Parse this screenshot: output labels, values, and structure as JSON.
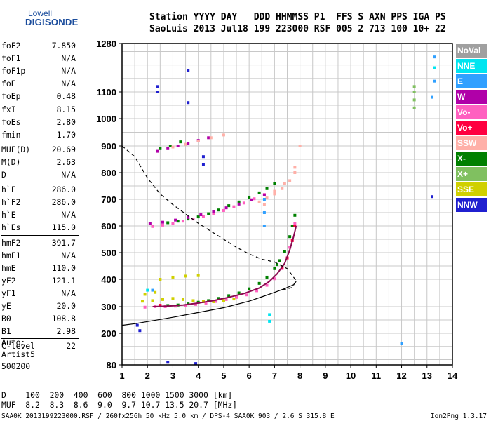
{
  "logo": {
    "line1": "Lowell",
    "line2": "DIGISONDE"
  },
  "header": {
    "line1": "Station YYYY DAY   DDD HHMMSS P1  FFS S AXN PPS IGA PS",
    "line2": "SaoLuis 2013 Jul18 199 223000 RSF 005 2 713 100 10+ 22"
  },
  "params": [
    {
      "name": "foF2",
      "value": "7.850"
    },
    {
      "name": "foF1",
      "value": "N/A"
    },
    {
      "name": "foF1p",
      "value": "N/A"
    },
    {
      "name": "foE",
      "value": "N/A"
    },
    {
      "name": "foEp",
      "value": "0.48"
    },
    {
      "name": "fxI",
      "value": "8.15"
    },
    {
      "name": "foEs",
      "value": "2.80"
    },
    {
      "name": "fmin",
      "value": "1.70"
    },
    {
      "name": "MUF(D)",
      "value": "20.69"
    },
    {
      "name": "M(D)",
      "value": "2.63"
    },
    {
      "name": "D",
      "value": "N/A"
    },
    {
      "name": "h`F",
      "value": "286.0"
    },
    {
      "name": "h`F2",
      "value": "286.0"
    },
    {
      "name": "h`E",
      "value": "N/A"
    },
    {
      "name": "h`Es",
      "value": "115.0"
    },
    {
      "name": "hmF2",
      "value": "391.7"
    },
    {
      "name": "hmF1",
      "value": "N/A"
    },
    {
      "name": "hmE",
      "value": "110.0"
    },
    {
      "name": "yF2",
      "value": "121.1"
    },
    {
      "name": "yF1",
      "value": "N/A"
    },
    {
      "name": "yE",
      "value": "20.0"
    },
    {
      "name": "B0",
      "value": "108.8"
    },
    {
      "name": "B1",
      "value": "2.98"
    },
    {
      "name": "C-level",
      "value": "22"
    }
  ],
  "auto": {
    "line1": "Auto:",
    "line2": "Artist5",
    "line3": "500200"
  },
  "bottom": {
    "line1": "D    100  200  400  600  800 1000 1500 3000 [km]",
    "line2": "MUF  8.2  8.3  8.6  9.0  9.7 10.7 13.5 20.7 [MHz]"
  },
  "footer": {
    "left": "SAA0K_2013199223000.RSF / 260fx256h 50 kHz 5.0 km / DPS-4 SAA0K 903 / 2.6 S 315.8 E",
    "right": "Ion2Png 1.3.17"
  },
  "legend": [
    {
      "label": "NoVal",
      "bg": "#a0a0a0",
      "fg": "#ffffff"
    },
    {
      "label": "NNE",
      "bg": "#00e5f0",
      "fg": "#ffffff"
    },
    {
      "label": "E",
      "bg": "#30a0ff",
      "fg": "#ffffff"
    },
    {
      "label": "W",
      "bg": "#b000a8",
      "fg": "#ffffff"
    },
    {
      "label": "Vo-",
      "bg": "#ff60c0",
      "fg": "#ffffff"
    },
    {
      "label": "Vo+",
      "bg": "#ff0040",
      "fg": "#ffffff"
    },
    {
      "label": "SSW",
      "bg": "#ffb0a8",
      "fg": "#ffffff"
    },
    {
      "label": "X-",
      "bg": "#008000",
      "fg": "#ffffff"
    },
    {
      "label": "X+",
      "bg": "#80c060",
      "fg": "#ffffff"
    },
    {
      "label": "SSE",
      "bg": "#d0d000",
      "fg": "#ffffff"
    },
    {
      "label": "NNW",
      "bg": "#2020d0",
      "fg": "#ffffff"
    }
  ],
  "chart_data": {
    "type": "scatter",
    "title": "",
    "xlabel": "",
    "ylabel": "",
    "xlim": [
      1,
      14
    ],
    "ylim": [
      80,
      1280
    ],
    "x_ticks": [
      1,
      2,
      3,
      4,
      5,
      6,
      7,
      8,
      9,
      10,
      11,
      12,
      13,
      14
    ],
    "y_ticks": [
      80,
      200,
      300,
      400,
      500,
      600,
      700,
      800,
      900,
      1000,
      1100,
      1280
    ],
    "grid": true,
    "series": [
      {
        "name": "X-",
        "color": "#008000",
        "kind": "points",
        "x": [
          2.8,
          3.2,
          3.6,
          4.0,
          4.4,
          4.8,
          5.2,
          5.6,
          6.0,
          6.4,
          6.7,
          7.0,
          7.1,
          7.2,
          7.4,
          7.6,
          7.7,
          7.8,
          2.8,
          3.2,
          3.6,
          4.0,
          4.4,
          4.8,
          5.2,
          5.6,
          6.0,
          6.4,
          6.7,
          7.0,
          2.5,
          2.9,
          3.3
        ],
        "y": [
          304,
          306,
          310,
          316,
          322,
          330,
          340,
          350,
          365,
          385,
          408,
          440,
          455,
          470,
          505,
          560,
          600,
          640,
          612,
          618,
          626,
          634,
          646,
          660,
          676,
          690,
          708,
          724,
          740,
          760,
          890,
          900,
          915
        ]
      },
      {
        "name": "Vo-",
        "color": "#ff60c0",
        "kind": "points",
        "x": [
          1.9,
          2.3,
          2.7,
          3.1,
          3.5,
          3.9,
          4.3,
          4.7,
          5.1,
          5.5,
          5.9,
          6.3,
          6.7,
          7.0,
          7.3,
          7.6,
          7.8,
          2.2,
          2.6,
          3.0,
          3.4,
          3.8,
          4.2,
          4.6,
          5.0,
          5.4,
          5.8,
          6.2,
          6.6
        ],
        "y": [
          298,
          300,
          300,
          302,
          304,
          308,
          313,
          319,
          326,
          334,
          343,
          358,
          378,
          402,
          440,
          520,
          610,
          598,
          603,
          610,
          618,
          626,
          636,
          646,
          658,
          672,
          686,
          702,
          718
        ]
      },
      {
        "name": "W",
        "color": "#b000a8",
        "kind": "points",
        "x": [
          2.1,
          2.6,
          3.1,
          3.6,
          4.1,
          4.6,
          5.1,
          5.6,
          6.1,
          6.6,
          2.4,
          2.8,
          3.2,
          3.6,
          4.0,
          4.4
        ],
        "y": [
          608,
          614,
          622,
          632,
          642,
          654,
          668,
          682,
          698,
          716,
          880,
          890,
          900,
          910,
          920,
          930
        ]
      },
      {
        "name": "SSW",
        "color": "#ffb0a8",
        "kind": "points",
        "x": [
          6.4,
          6.7,
          7.0,
          7.3,
          7.6,
          7.8,
          8.0,
          6.6,
          7.0,
          7.4,
          7.8,
          3.0,
          3.5,
          4.0,
          4.5,
          5.0
        ],
        "y": [
          690,
          705,
          720,
          740,
          770,
          820,
          900,
          680,
          730,
          760,
          800,
          896,
          906,
          918,
          930,
          940
        ]
      },
      {
        "name": "SSE",
        "color": "#d0d000",
        "kind": "points",
        "x": [
          1.8,
          2.2,
          2.6,
          3.0,
          3.4,
          3.8,
          4.2,
          4.6,
          5.0,
          5.4,
          2.5,
          3.0,
          3.5,
          4.0,
          1.9,
          2.3
        ],
        "y": [
          320,
          322,
          326,
          330,
          326,
          322,
          318,
          318,
          322,
          328,
          400,
          408,
          412,
          414,
          345,
          352
        ]
      },
      {
        "name": "X+",
        "color": "#80c060",
        "kind": "points",
        "x": [
          12.5,
          12.5,
          12.5,
          12.5
        ],
        "y": [
          1040,
          1070,
          1100,
          1120
        ]
      },
      {
        "name": "NNW",
        "color": "#2020d0",
        "kind": "points",
        "x": [
          2.4,
          2.4,
          3.6,
          3.6,
          4.2,
          4.2,
          1.6,
          1.7,
          13.2,
          2.8,
          3.9
        ],
        "y": [
          1100,
          1120,
          1180,
          1060,
          860,
          830,
          230,
          210,
          710,
          90,
          85
        ]
      },
      {
        "name": "E",
        "color": "#30a0ff",
        "kind": "points",
        "x": [
          6.6,
          6.6,
          6.6,
          13.3,
          13.3,
          13.2,
          12.0,
          2.2
        ],
        "y": [
          700,
          650,
          600,
          1230,
          1140,
          1080,
          160,
          360
        ]
      },
      {
        "name": "NNE",
        "color": "#00e5f0",
        "kind": "points",
        "x": [
          6.8,
          6.8,
          13.3,
          2.0
        ],
        "y": [
          270,
          245,
          1190,
          360
        ]
      },
      {
        "name": "Vo+",
        "color": "#ff0040",
        "kind": "points",
        "x": [
          7.3,
          7.5,
          7.7,
          7.8,
          2.5
        ],
        "y": [
          445,
          480,
          545,
          600,
          305
        ]
      },
      {
        "name": "Ordinary trace",
        "color": "#8b0a50",
        "kind": "line",
        "x": [
          2.2,
          2.8,
          3.4,
          4.0,
          4.6,
          5.2,
          5.8,
          6.4,
          6.8,
          7.1,
          7.4,
          7.6,
          7.75,
          7.85
        ],
        "y": [
          300,
          302,
          306,
          313,
          322,
          334,
          348,
          368,
          392,
          420,
          460,
          510,
          560,
          600
        ]
      },
      {
        "name": "Profile",
        "color": "#000000",
        "kind": "line",
        "x": [
          1.0,
          1.5,
          2.0,
          3.0,
          4.0,
          5.0,
          6.0,
          6.5,
          7.0,
          7.4,
          7.75,
          7.85
        ],
        "y": [
          230,
          236,
          244,
          260,
          278,
          296,
          320,
          336,
          352,
          366,
          380,
          392
        ]
      },
      {
        "name": "MUF dashed",
        "color": "#000000",
        "kind": "dashed",
        "x": [
          1.0,
          1.5,
          2.0,
          2.5,
          3.0,
          3.5,
          4.0,
          4.5,
          5.0,
          5.5,
          6.0,
          6.5,
          7.0,
          7.5,
          7.85,
          7.7,
          7.3
        ],
        "y": [
          900,
          860,
          780,
          720,
          680,
          645,
          610,
          580,
          550,
          520,
          495,
          475,
          465,
          440,
          395,
          370,
          360
        ]
      }
    ]
  }
}
